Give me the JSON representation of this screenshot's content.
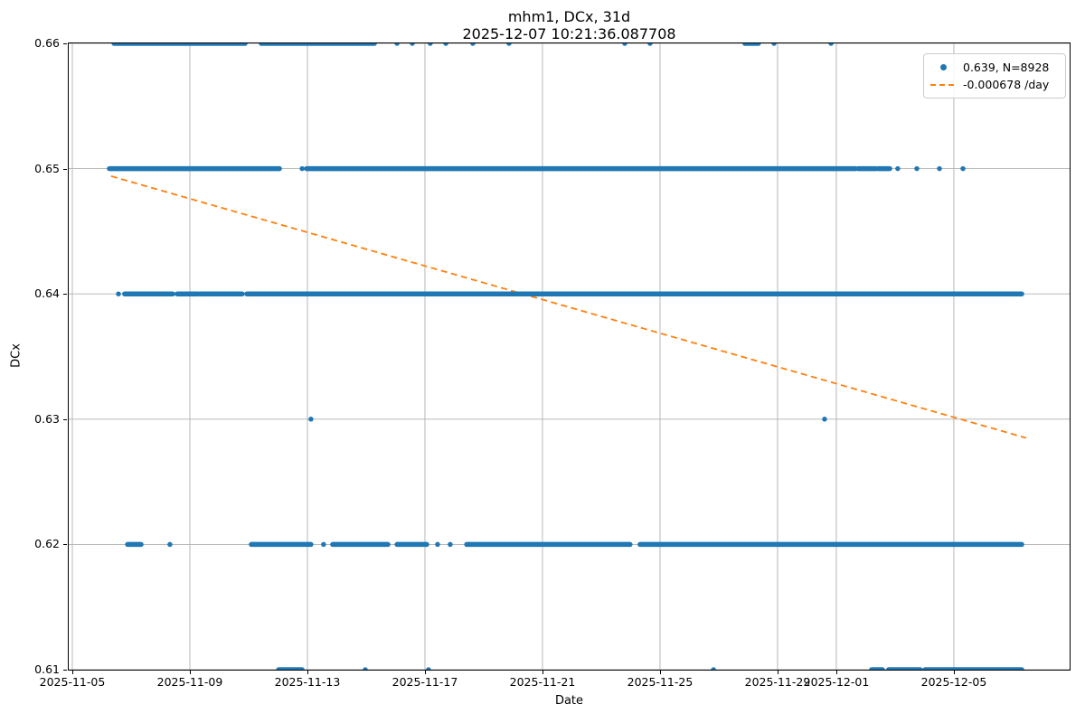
{
  "title_line1": "mhm1, DCx, 31d",
  "title_line2": "2025-12-07 10:21:36.087708",
  "xlabel": "Date",
  "ylabel": "DCx",
  "legend": {
    "entries": [
      {
        "marker": "scatter-dot",
        "label": "0.639, N=8928"
      },
      {
        "marker": "dashed-line",
        "label": "-0.000678 /day"
      }
    ]
  },
  "colors": {
    "scatter": "#1f77b4",
    "trend": "#ff7f0e",
    "grid": "#b0b0b0",
    "spine": "#000000",
    "legend_border": "#cccccc"
  },
  "chart_data": {
    "type": "scatter",
    "title": "mhm1, DCx, 31d\n2025-12-07 10:21:36.087708",
    "xlabel": "Date",
    "ylabel": "DCx",
    "grid": true,
    "legend_position": "upper right",
    "x_unit": "days since 2025-11-05 00:00",
    "x_range_days": [
      -0.123,
      33.94
    ],
    "ylim": [
      0.61,
      0.66
    ],
    "x_ticks": [
      {
        "day": 0,
        "label": "2025-11-05"
      },
      {
        "day": 4,
        "label": "2025-11-09"
      },
      {
        "day": 8,
        "label": "2025-11-13"
      },
      {
        "day": 12,
        "label": "2025-11-17"
      },
      {
        "day": 16,
        "label": "2025-11-21"
      },
      {
        "day": 20,
        "label": "2025-11-25"
      },
      {
        "day": 24,
        "label": "2025-11-29"
      },
      {
        "day": 26,
        "label": "2025-12-01"
      },
      {
        "day": 30,
        "label": "2025-12-05"
      }
    ],
    "y_ticks": [
      {
        "value": 0.66,
        "label": "0.66"
      },
      {
        "value": 0.65,
        "label": "0.65"
      },
      {
        "value": 0.64,
        "label": "0.64"
      },
      {
        "value": 0.63,
        "label": "0.63"
      },
      {
        "value": 0.62,
        "label": "0.62"
      },
      {
        "value": 0.61,
        "label": "0.61"
      }
    ],
    "series_name": "DCx samples",
    "marker_diameter_px": 5.5,
    "bands": [
      {
        "value": 0.66,
        "segments": [
          [
            1.42,
            5.88
          ],
          [
            6.43,
            10.28
          ],
          [
            22.89,
            23.35
          ]
        ],
        "dots": [
          11.05,
          11.57,
          12.18,
          12.71,
          13.63,
          14.86,
          18.8,
          19.66,
          23.88,
          25.82
        ]
      },
      {
        "value": 0.65,
        "segments": [
          [
            1.26,
            7.05
          ],
          [
            7.97,
            26.65
          ],
          [
            26.74,
            27.35
          ],
          [
            27.42,
            27.82
          ]
        ],
        "dots": [
          7.82,
          28.09,
          28.74,
          29.51,
          30.31
        ]
      },
      {
        "value": 0.64,
        "segments": [
          [
            1.78,
            3.42
          ],
          [
            3.57,
            4.28
          ],
          [
            4.34,
            5.78
          ],
          [
            5.94,
            32.31
          ]
        ],
        "dots": [
          1.57
        ]
      },
      {
        "value": 0.63,
        "segments": [],
        "dots": [
          8.12,
          25.6
        ]
      },
      {
        "value": 0.62,
        "segments": [
          [
            1.88,
            2.34
          ],
          [
            6.09,
            8.12
          ],
          [
            8.86,
            10.74
          ],
          [
            11.05,
            12.06
          ],
          [
            13.42,
            18.98
          ],
          [
            19.32,
            32.31
          ]
        ],
        "dots": [
          3.32,
          8.55,
          12.43,
          12.86
        ]
      },
      {
        "value": 0.61,
        "segments": [
          [
            7.02,
            7.82
          ],
          [
            27.2,
            27.57
          ],
          [
            27.78,
            28.86
          ],
          [
            29.02,
            32.31
          ]
        ],
        "dots": [
          9.97,
          12.12,
          21.82
        ]
      }
    ],
    "trend": {
      "style": "dashed",
      "label": "-0.000678 /day",
      "slope_per_day": -0.000678,
      "from": {
        "day": 1.32,
        "value": 0.6494
      },
      "to": {
        "day": 32.46,
        "value": 0.6285
      }
    },
    "stats": {
      "mean_label": "0.639",
      "n": 8928
    }
  }
}
